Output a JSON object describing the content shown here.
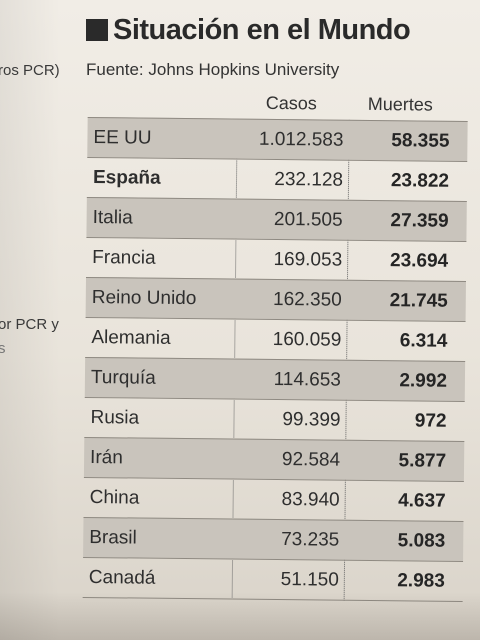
{
  "side_text": {
    "line1": "ros PCR)",
    "line2": "or PCR y",
    "line3": "s"
  },
  "header": {
    "title": "Situación en el Mundo",
    "source": "Fuente: Johns Hopkins University"
  },
  "table": {
    "columns": [
      "Casos",
      "Muertes"
    ],
    "rows": [
      {
        "country": "EE UU",
        "cases": "1.012.583",
        "deaths": "58.355"
      },
      {
        "country": "España",
        "cases": "232.128",
        "deaths": "23.822"
      },
      {
        "country": "Italia",
        "cases": "201.505",
        "deaths": "27.359"
      },
      {
        "country": "Francia",
        "cases": "169.053",
        "deaths": "23.694"
      },
      {
        "country": "Reino Unido",
        "cases": "162.350",
        "deaths": "21.745"
      },
      {
        "country": "Alemania",
        "cases": "160.059",
        "deaths": "6.314"
      },
      {
        "country": "Turquía",
        "cases": "114.653",
        "deaths": "2.992"
      },
      {
        "country": "Rusia",
        "cases": "99.399",
        "deaths": "972"
      },
      {
        "country": "Irán",
        "cases": "92.584",
        "deaths": "5.877"
      },
      {
        "country": "China",
        "cases": "83.940",
        "deaths": "4.637"
      },
      {
        "country": "Brasil",
        "cases": "73.235",
        "deaths": "5.083"
      },
      {
        "country": "Canadá",
        "cases": "51.150",
        "deaths": "2.983"
      }
    ]
  }
}
